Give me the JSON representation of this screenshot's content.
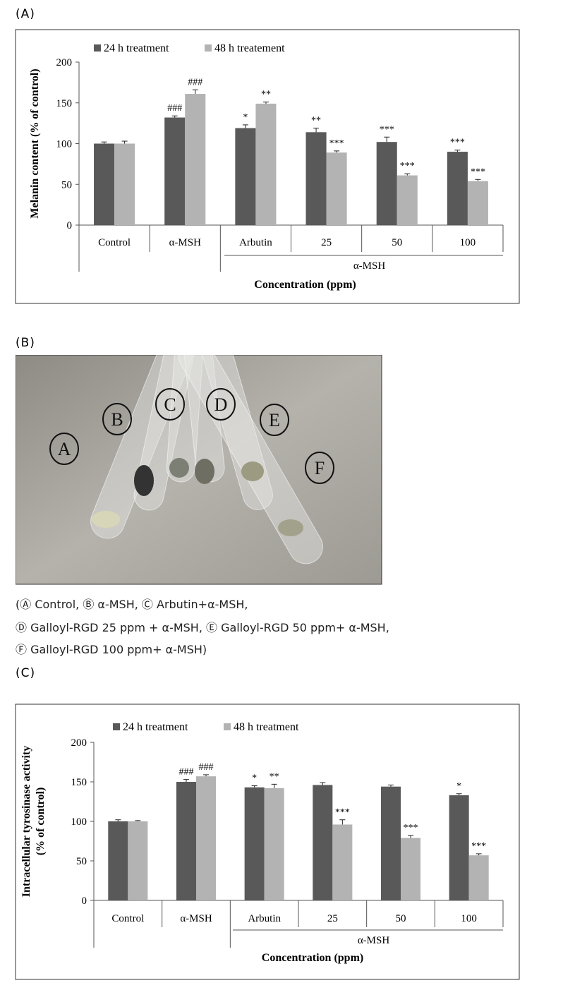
{
  "panel_labels": [
    "(A)",
    "(B)",
    "(C)"
  ],
  "chart_data": [
    {
      "type": "bar",
      "y_label": [
        "Melanin content (% of control)"
      ],
      "x_label": "Concentration (ppm)",
      "group_label": "α-MSH",
      "categories": [
        "Control",
        "α-MSH",
        "Arbutin",
        "25",
        "50",
        "100"
      ],
      "series": [
        {
          "name": "24 h treatment",
          "color": "#595959",
          "values": [
            100,
            132,
            119,
            114,
            102,
            90
          ],
          "errors": [
            2,
            2,
            4,
            5,
            6,
            2
          ],
          "annotations": [
            null,
            "###",
            "*",
            "**",
            "***",
            "***"
          ]
        },
        {
          "name": "48 h treatement",
          "color": "#b3b3b3",
          "values": [
            100,
            161,
            149,
            89,
            61,
            54
          ],
          "errors": [
            3,
            5,
            2,
            2,
            2,
            2
          ],
          "annotations": [
            null,
            "###",
            "**",
            "***",
            "***",
            "***"
          ]
        }
      ],
      "ylim": [
        0,
        200
      ],
      "yticks": [
        0,
        50,
        100,
        150,
        200
      ],
      "grid": false
    },
    {
      "type": "bar",
      "y_label": [
        "Intracellular tyrosinase activity",
        "(% of control)"
      ],
      "x_label": "Concentration (ppm)",
      "group_label": "α-MSH",
      "categories": [
        "Control",
        "α-MSH",
        "Arbutin",
        "25",
        "50",
        "100"
      ],
      "series": [
        {
          "name": "24 h treatment",
          "color": "#595959",
          "values": [
            100,
            150,
            143,
            146,
            144,
            133
          ],
          "errors": [
            2,
            3,
            2,
            3,
            2,
            2
          ],
          "annotations": [
            null,
            "###",
            "*",
            null,
            null,
            "*"
          ]
        },
        {
          "name": "48 h treatment",
          "color": "#b3b3b3",
          "values": [
            100,
            157,
            142,
            96,
            79,
            57
          ],
          "errors": [
            1,
            2,
            5,
            6,
            3,
            2
          ],
          "annotations": [
            null,
            "###",
            "**",
            "***",
            "***",
            "***"
          ]
        }
      ],
      "ylim": [
        0,
        200
      ],
      "yticks": [
        0,
        50,
        100,
        150,
        200
      ],
      "grid": false
    }
  ],
  "photo": {
    "labels": [
      "A",
      "B",
      "C",
      "D",
      "E",
      "F"
    ],
    "caption": [
      "(Ⓐ Control, Ⓑ α-MSH, Ⓒ Arbutin+α-MSH,",
      "Ⓓ Galloyl-RGD 25 ppm + α-MSH, Ⓔ Galloyl-RGD 50 ppm+ α-MSH,",
      "Ⓕ Galloyl-RGD 100 ppm+ α-MSH)"
    ]
  }
}
